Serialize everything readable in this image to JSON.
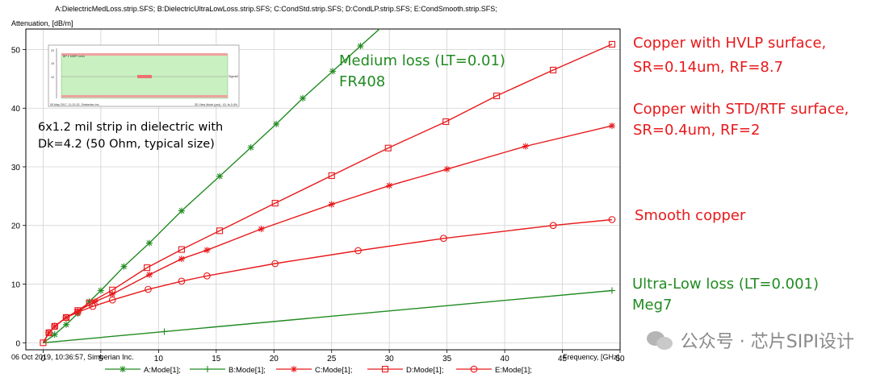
{
  "chart_data": {
    "type": "line",
    "title": "A:DielectricMedLoss.strip.SFS; B:DielectricUltraLowLoss.strip.SFS; C:CondStd.strip.SFS; D:CondLP.strip.SFS; E:CondSmooth.strip.SFS;",
    "ylabel": "Attenuation, [dB/m]",
    "xlabel": "Frequency, [GHz]",
    "footer": "06 Oct 2019, 10:36:57, Simberian Inc.",
    "xlim": [
      -1.5,
      50
    ],
    "ylim": [
      -1.2,
      53.5
    ],
    "xticks": [
      0,
      5,
      10,
      15,
      20,
      25,
      30,
      35,
      40,
      45,
      50
    ],
    "yticks": [
      0,
      10,
      20,
      30,
      40,
      50
    ],
    "grid": true,
    "legend_position": "bottom",
    "series": [
      {
        "name": "A:Mode[1];",
        "color": "#218b21",
        "marker": "star",
        "x": [
          0,
          1,
          2,
          3,
          4,
          5,
          7,
          9.2,
          12,
          15.3,
          18,
          20.2,
          22.5,
          25.1,
          27.5,
          30,
          32
        ],
        "y": [
          0,
          1.4,
          3.1,
          5.0,
          7.0,
          8.9,
          13.0,
          17.0,
          22.5,
          28.4,
          33.3,
          37.3,
          41.7,
          46.3,
          50.6,
          55.0,
          58.7
        ]
      },
      {
        "name": "B:Mode[1];",
        "color": "#218b21",
        "marker": "plus",
        "x": [
          0,
          10.5,
          49.3
        ],
        "y": [
          0,
          1.9,
          8.9
        ]
      },
      {
        "name": "C:Mode[1];",
        "color": "#e8191b",
        "marker": "star",
        "x": [
          0,
          0.5,
          1,
          2,
          3,
          4.5,
          6,
          9.2,
          12,
          14.2,
          18.9,
          25,
          30,
          35,
          41.8,
          49.3
        ],
        "y": [
          0,
          1.7,
          2.8,
          4.3,
          5.4,
          7.0,
          8.3,
          11.6,
          14.3,
          15.8,
          19.4,
          23.6,
          26.8,
          29.6,
          33.5,
          37.0
        ]
      },
      {
        "name": "D:Mode[1];",
        "color": "#e8191b",
        "marker": "square",
        "x": [
          0,
          0.5,
          1,
          2,
          3,
          4,
          6,
          9,
          12,
          15.3,
          20.1,
          25,
          29.9,
          34.9,
          39.3,
          44.2,
          49.3
        ],
        "y": [
          0,
          1.7,
          2.8,
          4.3,
          5.5,
          6.8,
          9.0,
          12.8,
          15.9,
          19.1,
          23.8,
          28.5,
          33.2,
          37.7,
          42.1,
          46.5,
          50.9
        ]
      },
      {
        "name": "E:Mode[1];",
        "color": "#e8191b",
        "marker": "circle",
        "x": [
          0,
          0.5,
          1,
          2,
          3,
          4.3,
          6,
          9.1,
          12,
          14.2,
          20.1,
          27.3,
          34.7,
          44.2,
          49.3
        ],
        "y": [
          0,
          1.7,
          2.8,
          4.3,
          5.2,
          6.2,
          7.3,
          9.1,
          10.5,
          11.4,
          13.5,
          15.7,
          17.8,
          20.0,
          21.0
        ]
      }
    ],
    "inset": {
      "title_left": "BP 1 MWP Lines",
      "legend_right": "Signal0",
      "axis_left_top": "20",
      "axis_left_mid": "15",
      "axis_left_low": "10",
      "footer_left": "05 May 2017, 11:21:32, Simberian Inc.",
      "footer_right": "3D View Mode (pcs) · ID: fs 0.4%"
    }
  },
  "annotations": {
    "hvlp_line1": "Copper with HVLP surface,",
    "hvlp_line2": "SR=0.14um, RF=8.7",
    "std_line1": "Copper with STD/RTF surface,",
    "std_line2": "SR=0.4um, RF=2",
    "smooth": "Smooth copper",
    "medium_line1": "Medium loss (LT=0.01)",
    "medium_line2": "FR408",
    "ultralow_line1": "Ultra-Low loss (LT=0.001)",
    "ultralow_line2": "Meg7",
    "strip_line1": "6x1.2 mil strip in dielectric with",
    "strip_line2": "Dk=4.2 (50 Ohm, typical size)"
  },
  "watermark": "公众号 · 芯片SIPI设计"
}
